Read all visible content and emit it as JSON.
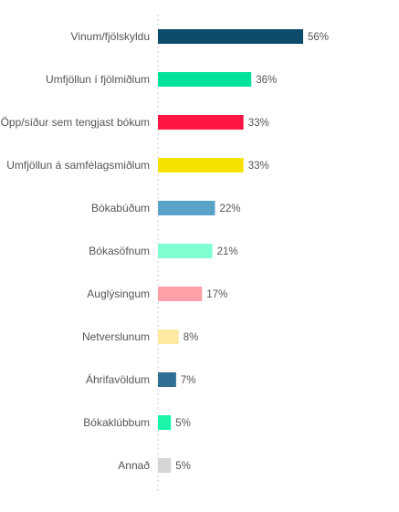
{
  "chart_data": {
    "type": "bar",
    "orientation": "horizontal",
    "categories": [
      "Vinum/fjölskyldu",
      "Umfjöllun í fjölmiðlum",
      "Öpp/síður sem tengjast bókum",
      "Umfjöllun á samfélagsmiðlum",
      "Bókabúðum",
      "Bókasöfnum",
      "Auglýsingum",
      "Netverslunum",
      "Áhrifavöldum",
      "Bókaklúbbum",
      "Annað"
    ],
    "values": [
      56,
      36,
      33,
      33,
      22,
      21,
      17,
      8,
      7,
      5,
      5
    ],
    "value_labels": [
      "56%",
      "36%",
      "33%",
      "33%",
      "22%",
      "21%",
      "17%",
      "8%",
      "7%",
      "5%",
      "5%"
    ],
    "colors": [
      "#0f4c6b",
      "#00e29b",
      "#ff1744",
      "#f6e200",
      "#5aa3c8",
      "#80ffd0",
      "#ff9fa8",
      "#ffe8a0",
      "#2f6f93",
      "#1af5a8",
      "#d6d6d6"
    ],
    "unit": "%",
    "xlim": [
      0,
      56
    ],
    "grid": false,
    "legend": "none"
  }
}
